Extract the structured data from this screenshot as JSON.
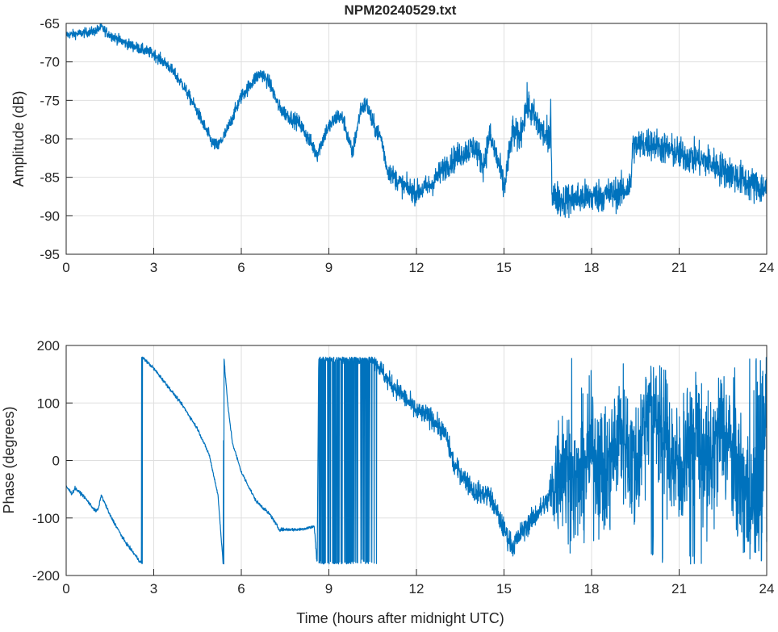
{
  "chart_data": [
    {
      "type": "line",
      "title": "NPM20240529.txt",
      "xlabel": "",
      "ylabel": "Amplitude (dB)",
      "xlim": [
        0,
        24
      ],
      "ylim": [
        -95,
        -65
      ],
      "xticks": [
        0,
        3,
        6,
        9,
        12,
        15,
        18,
        21,
        24
      ],
      "xtick_labels": [
        "0",
        "3",
        "6",
        "9",
        "12",
        "15",
        "18",
        "21",
        "24"
      ],
      "yticks": [
        -65,
        -70,
        -75,
        -80,
        -85,
        -90,
        -95
      ],
      "ytick_labels": [
        "-65",
        "-70",
        "-75",
        "-80",
        "-85",
        "-90",
        "-95"
      ],
      "grid": true,
      "color": "#0072BD",
      "series": [
        {
          "name": "Amplitude",
          "points": [
            [
              0,
              -66.5
            ],
            [
              0.5,
              -66.3
            ],
            [
              1.0,
              -66
            ],
            [
              1.2,
              -65.5
            ],
            [
              1.5,
              -66.5
            ],
            [
              2,
              -67.5
            ],
            [
              3,
              -69
            ],
            [
              3.5,
              -70.5
            ],
            [
              4,
              -73
            ],
            [
              4.5,
              -76.5
            ],
            [
              5,
              -80.5
            ],
            [
              5.2,
              -81
            ],
            [
              5.5,
              -79
            ],
            [
              6,
              -74.5
            ],
            [
              6.5,
              -72
            ],
            [
              6.7,
              -71.5
            ],
            [
              7,
              -73
            ],
            [
              7.3,
              -76
            ],
            [
              7.6,
              -77
            ],
            [
              8,
              -78
            ],
            [
              8.3,
              -80
            ],
            [
              8.6,
              -82
            ],
            [
              8.9,
              -79
            ],
            [
              9.3,
              -77
            ],
            [
              9.5,
              -77.5
            ],
            [
              9.8,
              -82
            ],
            [
              10.1,
              -76
            ],
            [
              10.3,
              -75.5
            ],
            [
              10.5,
              -78
            ],
            [
              10.8,
              -80
            ],
            [
              11,
              -84
            ],
            [
              11.5,
              -86
            ],
            [
              12,
              -87
            ],
            [
              12.5,
              -86
            ],
            [
              13,
              -83.5
            ],
            [
              13.5,
              -82
            ],
            [
              14,
              -81
            ],
            [
              14.3,
              -83.5
            ],
            [
              14.5,
              -79.5
            ],
            [
              14.8,
              -83
            ],
            [
              15,
              -86.5
            ],
            [
              15.3,
              -79
            ],
            [
              15.5,
              -80
            ],
            [
              15.8,
              -75.5
            ],
            [
              16,
              -77
            ],
            [
              16.3,
              -79
            ],
            [
              16.55,
              -80.5
            ],
            [
              16.6,
              -76
            ],
            [
              16.65,
              -87.5
            ],
            [
              17,
              -88
            ],
            [
              18,
              -87.5
            ],
            [
              19,
              -87
            ],
            [
              19.35,
              -86
            ],
            [
              19.4,
              -81
            ],
            [
              20,
              -80.5
            ],
            [
              21,
              -82
            ],
            [
              21.5,
              -82.5
            ],
            [
              22,
              -83
            ],
            [
              22.5,
              -84
            ],
            [
              23,
              -85
            ],
            [
              23.5,
              -86
            ],
            [
              24,
              -86.5
            ]
          ],
          "noise": [
            [
              0,
              0.4
            ],
            [
              10,
              0.8
            ],
            [
              16.6,
              1.6
            ],
            [
              19.4,
              1.5
            ],
            [
              24,
              1.6
            ]
          ]
        }
      ]
    },
    {
      "type": "line",
      "title": "",
      "xlabel": "Time (hours after midnight UTC)",
      "ylabel": "Phase (degrees)",
      "xlim": [
        0,
        24
      ],
      "ylim": [
        -200,
        200
      ],
      "xticks": [
        0,
        3,
        6,
        9,
        12,
        15,
        18,
        21,
        24
      ],
      "xtick_labels": [
        "0",
        "3",
        "6",
        "9",
        "12",
        "15",
        "18",
        "21",
        "24"
      ],
      "yticks": [
        200,
        100,
        0,
        -100,
        -200
      ],
      "ytick_labels": [
        "200",
        "100",
        "0",
        "-100",
        "-200"
      ],
      "grid": true,
      "color": "#0072BD",
      "wrap": [
        -180,
        180
      ],
      "series": [
        {
          "name": "Phase",
          "points": [
            [
              0,
              -45
            ],
            [
              0.2,
              -58
            ],
            [
              0.3,
              -48
            ],
            [
              0.6,
              -62
            ],
            [
              1.0,
              -88
            ],
            [
              1.1,
              -85
            ],
            [
              1.2,
              -60
            ],
            [
              1.5,
              -95
            ],
            [
              2,
              -140
            ],
            [
              2.59,
              -180
            ],
            [
              2.6,
              180
            ],
            [
              3,
              160
            ],
            [
              3.5,
              128
            ],
            [
              4,
              95
            ],
            [
              4.5,
              55
            ],
            [
              4.9,
              10
            ],
            [
              5.2,
              -60
            ],
            [
              5.38,
              -180
            ],
            [
              5.4,
              180
            ],
            [
              5.55,
              90
            ],
            [
              5.7,
              30
            ],
            [
              6,
              -20
            ],
            [
              6.5,
              -70
            ],
            [
              7,
              -95
            ],
            [
              7.3,
              -120
            ],
            [
              8,
              -120
            ],
            [
              8.5,
              -115
            ],
            [
              8.6,
              -180
            ],
            [
              8.65,
              178
            ],
            [
              10.5,
              178
            ],
            [
              10.7,
              165
            ],
            [
              11,
              140
            ],
            [
              11.5,
              115
            ],
            [
              12,
              85
            ],
            [
              12.5,
              75
            ],
            [
              13,
              45
            ],
            [
              13.3,
              -10
            ],
            [
              13.5,
              -20
            ],
            [
              14,
              -55
            ],
            [
              14.5,
              -60
            ],
            [
              15,
              -120
            ],
            [
              15.3,
              -150
            ],
            [
              15.6,
              -125
            ],
            [
              16,
              -100
            ],
            [
              16.5,
              -70
            ],
            [
              17,
              0
            ],
            [
              17.5,
              -50
            ],
            [
              18,
              20
            ],
            [
              18.5,
              -30
            ],
            [
              19,
              60
            ],
            [
              19.5,
              -20
            ],
            [
              20,
              120
            ],
            [
              20.5,
              50
            ],
            [
              21,
              -30
            ],
            [
              21.5,
              80
            ],
            [
              22,
              -20
            ],
            [
              22.5,
              60
            ],
            [
              23,
              -20
            ],
            [
              23.5,
              -80
            ],
            [
              23.8,
              -170
            ],
            [
              24,
              150
            ]
          ],
          "noise": [
            [
              0,
              2
            ],
            [
              8.5,
              2
            ],
            [
              8.6,
              6
            ],
            [
              10.5,
              6
            ],
            [
              10.6,
              12
            ],
            [
              16.5,
              14
            ],
            [
              16.8,
              80
            ],
            [
              24,
              90
            ]
          ]
        }
      ]
    }
  ]
}
